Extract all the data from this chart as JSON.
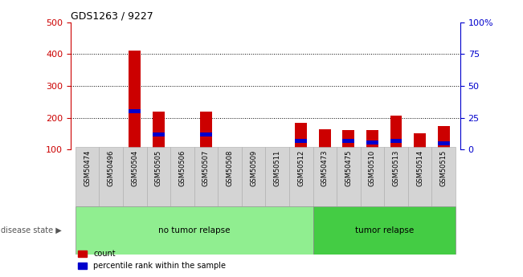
{
  "title": "GDS1263 / 9227",
  "samples": [
    "GSM50474",
    "GSM50496",
    "GSM50504",
    "GSM50505",
    "GSM50506",
    "GSM50507",
    "GSM50508",
    "GSM50509",
    "GSM50511",
    "GSM50512",
    "GSM50473",
    "GSM50475",
    "GSM50510",
    "GSM50513",
    "GSM50514",
    "GSM50515"
  ],
  "count_values": [
    100,
    100,
    410,
    220,
    100,
    218,
    100,
    100,
    100,
    183,
    165,
    162,
    160,
    207,
    152,
    173
  ],
  "percentile_left_values": [
    0,
    0,
    220,
    148,
    0,
    148,
    0,
    0,
    0,
    128,
    0,
    128,
    122,
    128,
    0,
    120
  ],
  "group1_label": "no tumor relapse",
  "group2_label": "tumor relapse",
  "group1_count": 10,
  "group2_count": 6,
  "ylim_left": [
    100,
    500
  ],
  "ylim_right": [
    0,
    100
  ],
  "yticks_left": [
    100,
    200,
    300,
    400,
    500
  ],
  "yticks_right": [
    0,
    25,
    50,
    75,
    100
  ],
  "yticklabels_right": [
    "0",
    "25",
    "50",
    "75",
    "100%"
  ],
  "grid_values": [
    200,
    300,
    400
  ],
  "bar_color_count": "#cc0000",
  "bar_color_pct": "#0000cc",
  "group1_color": "#90ee90",
  "group2_color": "#44cc44",
  "axis_color_left": "#cc0000",
  "axis_color_right": "#0000cc",
  "bar_width": 0.5,
  "pct_bar_height": 12,
  "legend_label_count": "count",
  "legend_label_pct": "percentile rank within the sample",
  "disease_state_label": "disease state"
}
